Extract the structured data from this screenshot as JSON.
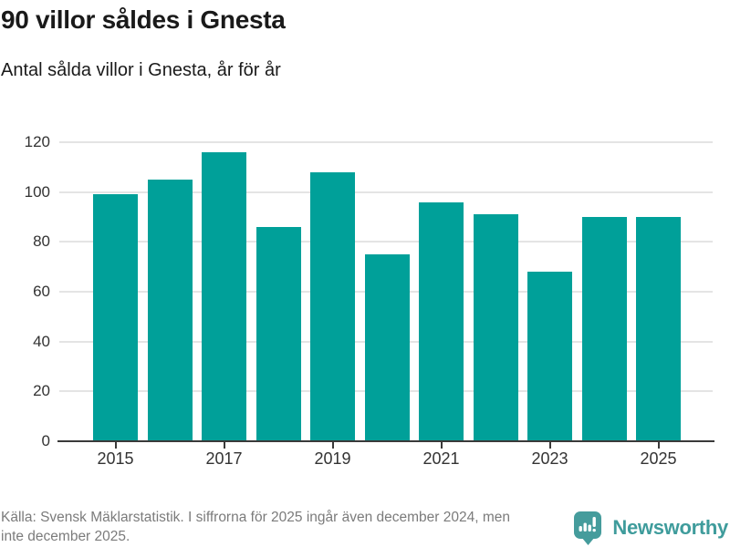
{
  "header": {
    "title": "90 villor såldes i Gnesta",
    "subtitle": "Antal sålda villor i Gnesta, år för år"
  },
  "chart_data": {
    "type": "bar",
    "title": "90 villor såldes i Gnesta",
    "subtitle": "Antal sålda villor i Gnesta, år för år",
    "categories": [
      2015,
      2016,
      2017,
      2018,
      2019,
      2020,
      2021,
      2022,
      2023,
      2024,
      2025
    ],
    "values": [
      99,
      105,
      116,
      86,
      108,
      75,
      96,
      91,
      68,
      90,
      90
    ],
    "xlabel": "",
    "ylabel": "",
    "ylim": [
      0,
      120
    ],
    "y_ticks": [
      0,
      20,
      40,
      60,
      80,
      100,
      120
    ],
    "x_tick_labels": [
      "2015",
      "2017",
      "2019",
      "2021",
      "2023",
      "2025"
    ],
    "grid": true,
    "legend_position": "none",
    "bar_color": "#00a099",
    "gridline_color": "#e4e4e4",
    "axis_color": "#3a3a3a"
  },
  "footer": {
    "source_lines": [
      "Källa: Svensk Mäklarstatistik. I siffrorna för 2025 ingår även december 2024, men",
      "inte december 2025."
    ],
    "brand": {
      "name": "Newsworthy",
      "color": "#3f9c9c",
      "icon": "newsworthy-chart-bubble-icon"
    }
  }
}
